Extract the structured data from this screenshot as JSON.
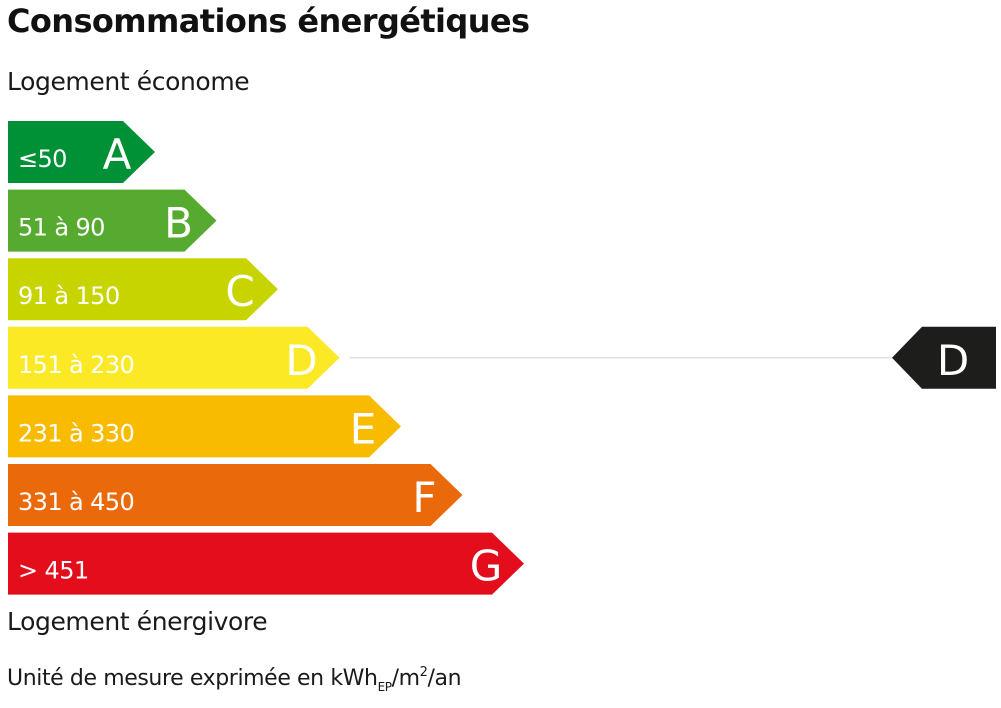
{
  "title": "Consommations énergétiques",
  "labels": {
    "top": "Logement économe",
    "bottom": "Logement énergivore"
  },
  "unit": {
    "prefix": "Unité de mesure exprimée en kWh",
    "sub": "EP",
    "mid": "/m",
    "sup": "2",
    "suffix": "/an"
  },
  "chart_data": {
    "type": "bar",
    "title": "Consommations énergétiques",
    "categories": [
      "A",
      "B",
      "C",
      "D",
      "E",
      "F",
      "G"
    ],
    "bands": [
      {
        "letter": "A",
        "range": "≤50",
        "color": "#009036"
      },
      {
        "letter": "B",
        "range": "51 à 90",
        "color": "#55aa2f"
      },
      {
        "letter": "C",
        "range": "91 à 150",
        "color": "#c8d400"
      },
      {
        "letter": "D",
        "range": "151 à 230",
        "color": "#fbe925"
      },
      {
        "letter": "E",
        "range": "231 à 330",
        "color": "#f8bb00"
      },
      {
        "letter": "F",
        "range": "331 à 450",
        "color": "#ea690b"
      },
      {
        "letter": "G",
        "range": "> 451",
        "color": "#e30d1c"
      }
    ],
    "current_class": "D",
    "indicator_color": "#1d1d1b",
    "line_color": "#e0e0e0"
  }
}
